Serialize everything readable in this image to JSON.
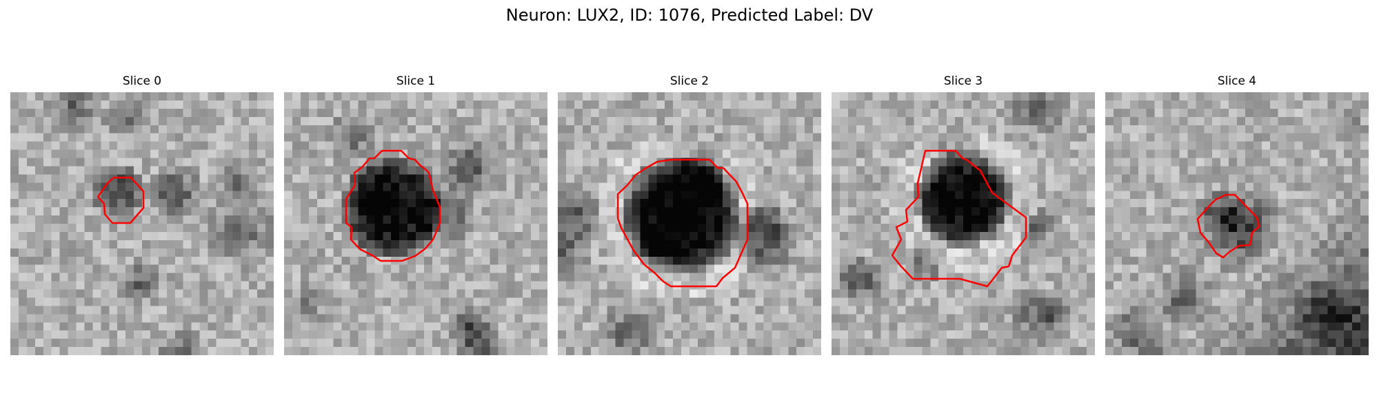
{
  "figure": {
    "title": "Neuron: LUX2, ID: 1076, Predicted Label: DV"
  },
  "colors": {
    "contour": "#ff0000",
    "background": "#ffffff"
  },
  "panels": [
    {
      "title": "Slice 0"
    },
    {
      "title": "Slice 1"
    },
    {
      "title": "Slice 2"
    },
    {
      "title": "Slice 3"
    },
    {
      "title": "Slice 4"
    }
  ]
}
